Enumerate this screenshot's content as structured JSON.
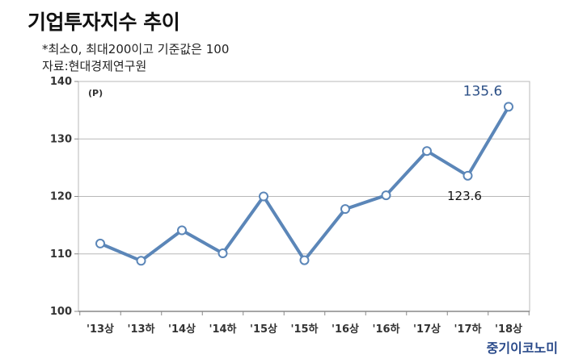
{
  "header": {
    "title": "기업투자지수 추이",
    "note": "*최소0, 최대200이고 기준값은 100",
    "source": "자료:현대경제연구원"
  },
  "brand": "중기이코노미",
  "colors": {
    "line": "#5b86b8",
    "marker_fill": "#ffffff",
    "grid": "#b8b8b8",
    "axis": "#888888"
  },
  "chart_data": {
    "type": "line",
    "unit_label": "(P)",
    "categories": [
      "'13상",
      "'13하",
      "'14상",
      "'14하",
      "'15상",
      "'15하",
      "'16상",
      "'16하",
      "'17상",
      "'17하",
      "'18상"
    ],
    "series": [
      {
        "values": [
          111.8,
          108.8,
          114.1,
          110.1,
          120.0,
          108.9,
          117.8,
          120.2,
          127.9,
          123.6,
          135.6
        ]
      }
    ],
    "ylim": [
      100,
      140
    ],
    "yticks": [
      100,
      110,
      120,
      130,
      140
    ],
    "grid": true,
    "annotations": [
      {
        "index": 10,
        "text": "135.6"
      },
      {
        "index": 9,
        "text": "123.6"
      }
    ]
  }
}
